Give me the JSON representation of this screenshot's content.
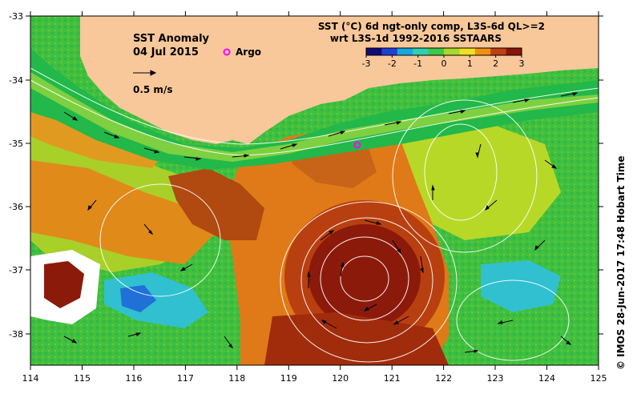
{
  "title": "SST Anomaly",
  "date": "04 Jul 2015",
  "scale_arrow_label": "0.5 m/s",
  "argo_label": "Argo",
  "colorbar": {
    "title_line1": "SST (°C) 6d ngt-only comp, L3S-6d QL>=2",
    "title_line2": "wrt L3S-1d 1992-2016 SSTAARS",
    "ticks": [
      "-3",
      "-2",
      "-1",
      "0",
      "1",
      "2",
      "3"
    ],
    "colors": [
      "#140a78",
      "#1e40d8",
      "#15a8e0",
      "#2fd0b0",
      "#3cc84a",
      "#a8d828",
      "#f0e020",
      "#f09010",
      "#c04010",
      "#8a1408"
    ]
  },
  "credit": "© IMOS 28-Jun-2017 17:48 Hobart Time",
  "axes": {
    "x_ticks": [
      "114",
      "115",
      "116",
      "117",
      "118",
      "119",
      "120",
      "121",
      "122",
      "123",
      "124",
      "125"
    ],
    "y_ticks": [
      "-33",
      "-34",
      "-35",
      "-36",
      "-37",
      "-38"
    ]
  },
  "colors": {
    "land": "#f8c89a",
    "coast_green": "#22b84a",
    "warm_orange": "#e08a1a",
    "eddy_red": "#8c1a0a",
    "argo": "#ff00ff"
  }
}
